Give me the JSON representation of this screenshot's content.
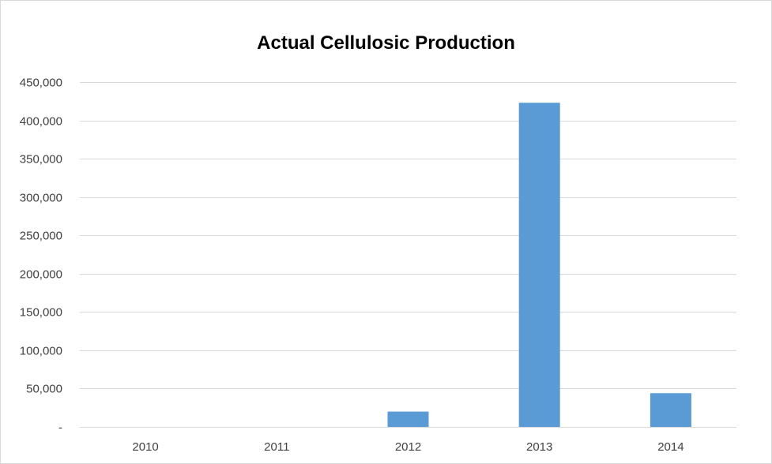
{
  "chart_data": {
    "type": "bar",
    "title": "Actual Cellulosic Production",
    "xlabel": "",
    "ylabel": "",
    "categories": [
      "2010",
      "2011",
      "2012",
      "2013",
      "2014"
    ],
    "values": [
      0,
      0,
      20000,
      423000,
      44000
    ],
    "ylim": [
      0,
      450000
    ],
    "yticks": [
      0,
      50000,
      100000,
      150000,
      200000,
      250000,
      300000,
      350000,
      400000,
      450000
    ],
    "ytick_labels": [
      "-",
      "50,000",
      "100,000",
      "150,000",
      "200,000",
      "250,000",
      "300,000",
      "350,000",
      "400,000",
      "450,000"
    ],
    "bar_color": "#5b9bd5",
    "grid": true,
    "legend": "none"
  },
  "colors": {
    "gridline": "#d9d9d9",
    "axis_text": "#404040"
  }
}
